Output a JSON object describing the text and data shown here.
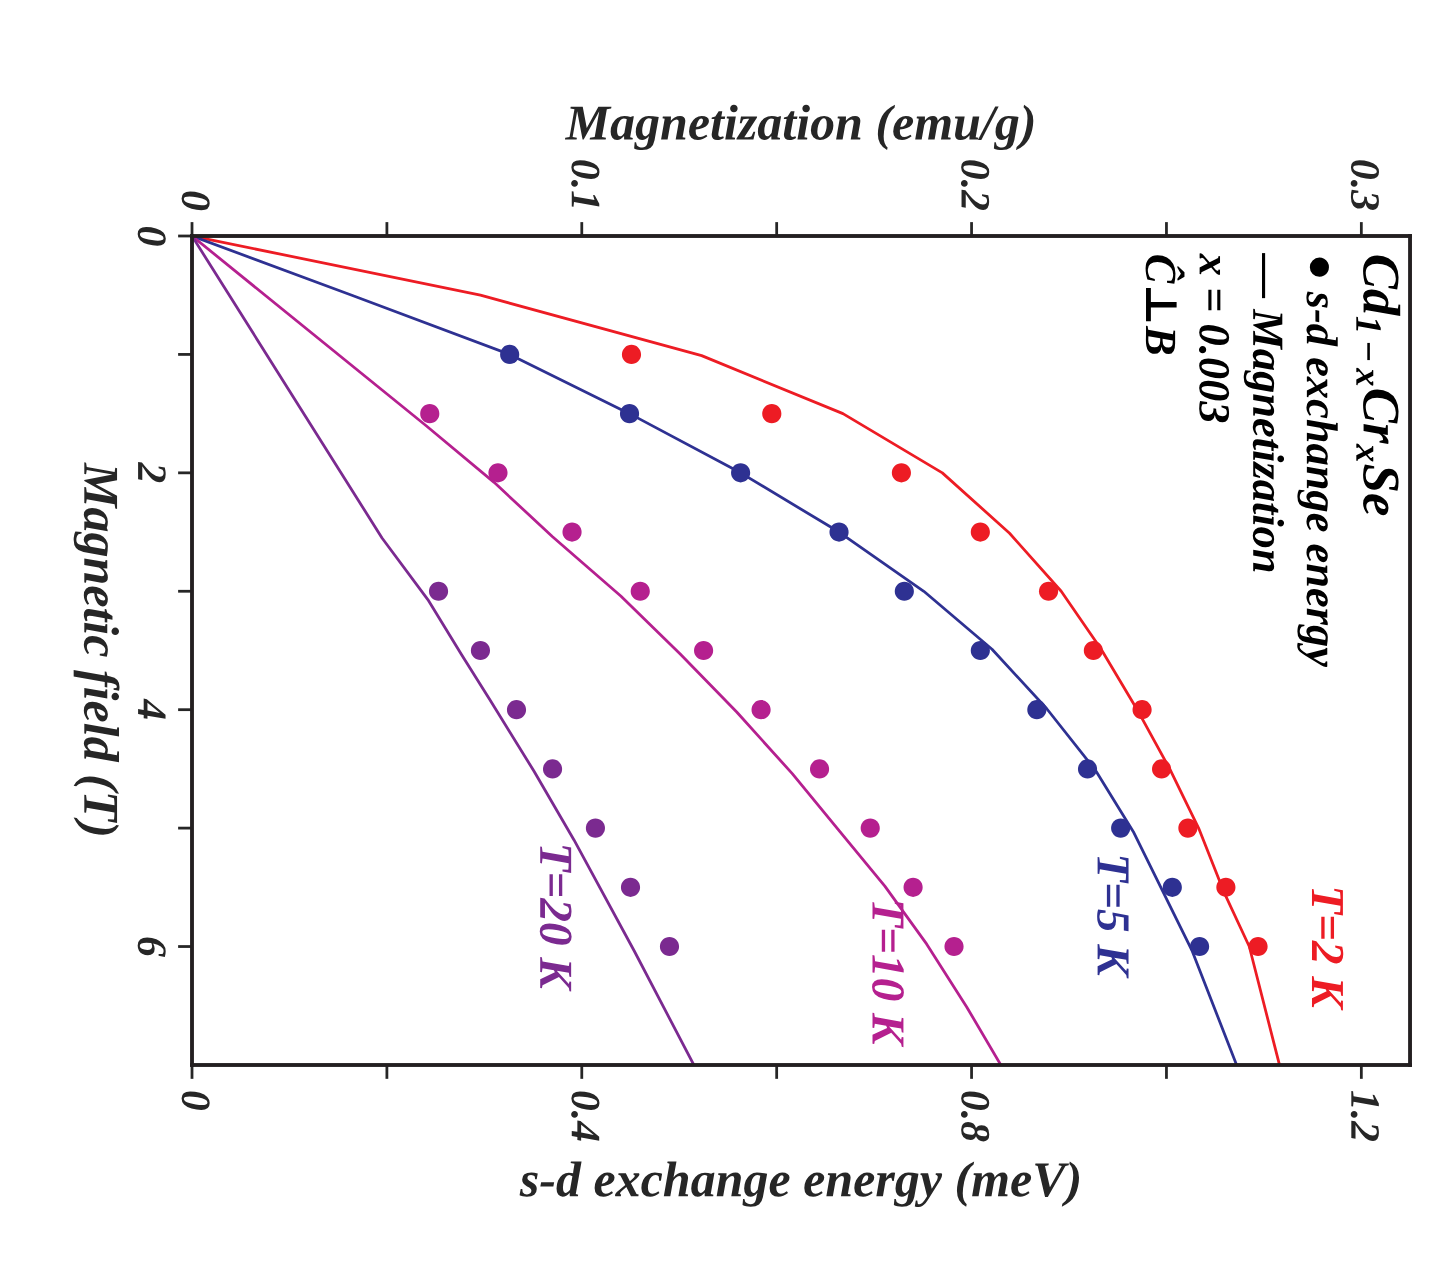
{
  "chart_data": {
    "type": "scatter",
    "xlabel": "s-d exchange energy (meV)",
    "ylabel": "Magnetic field (T)",
    "x2label": "Magnetization (emu/g)",
    "xlim": [
      0,
      1.25
    ],
    "xticks": [
      0,
      {
        "value": 0.2,
        "label": null
      },
      0.4,
      {
        "value": 0.6,
        "label": null
      },
      0.8,
      {
        "value": 1.0,
        "label": null
      },
      1.2
    ],
    "x2lim": [
      0,
      0.3125
    ],
    "x2ticks": [
      0,
      {
        "value": 0.05,
        "label": null
      },
      0.1,
      {
        "value": 0.15,
        "label": null
      },
      0.2,
      {
        "value": 0.25,
        "label": null
      },
      0.3
    ],
    "ylim": [
      7,
      0
    ],
    "yticks": [
      0,
      {
        "value": 1,
        "label": null
      },
      2,
      {
        "value": 3,
        "label": null
      },
      4,
      {
        "value": 5,
        "label": null
      },
      6
    ],
    "grid": false,
    "legend": false,
    "series": [
      {
        "marker": "circle",
        "color": "#ed1c24",
        "x": [
          0.451,
          0.595,
          0.728,
          0.809,
          0.879,
          0.925,
          0.975,
          0.995,
          1.022,
          1.061,
          1.094
        ],
        "values": [
          1,
          1.5,
          2,
          2.5,
          3,
          3.5,
          4,
          4.5,
          5,
          5.5,
          6
        ]
      },
      {
        "marker": "circle",
        "color": "#2e3192",
        "x": [
          0.326,
          0.449,
          0.563,
          0.664,
          0.731,
          0.809,
          0.867,
          0.919,
          0.953,
          1.006,
          1.034
        ],
        "values": [
          1,
          1.5,
          2,
          2.5,
          3,
          3.5,
          4,
          4.5,
          5,
          5.5,
          6
        ]
      },
      {
        "marker": "circle",
        "color": "#b5208f",
        "x": [
          0.244,
          0.314,
          0.39,
          0.46,
          0.525,
          0.584,
          0.644,
          0.696,
          0.74,
          0.782
        ],
        "values": [
          1.5,
          2,
          2.5,
          3,
          3.5,
          4,
          4.5,
          5,
          5.5,
          6
        ]
      },
      {
        "marker": "circle",
        "color": "#7b2a90",
        "x": [
          0.253,
          0.296,
          0.333,
          0.37,
          0.414,
          0.45,
          0.49
        ],
        "values": [
          3,
          3.5,
          4,
          4.5,
          5,
          5.5,
          6
        ]
      },
      {
        "type": "line",
        "name": "T=2 K",
        "line_style": "solid",
        "color": "#ed1c24",
        "x": [
          0,
          0.296,
          0.523,
          0.668,
          0.77,
          0.839,
          0.892,
          0.933,
          0.97,
          1.004,
          1.033,
          1.059,
          1.085,
          1.116
        ],
        "values": [
          0,
          0.5,
          1.01,
          1.5,
          2,
          2.51,
          3,
          3.49,
          4,
          4.51,
          5,
          5.54,
          6,
          7
        ]
      },
      {
        "type": "line",
        "name": "T=5 K",
        "line_style": "solid",
        "color": "#2e3192",
        "x": [
          0,
          0.164,
          0.326,
          0.449,
          0.563,
          0.664,
          0.751,
          0.821,
          0.877,
          0.927,
          0.966,
          1.026,
          1.072
        ],
        "values": [
          0,
          0.5,
          1,
          1.5,
          2,
          2.5,
          3,
          3.49,
          3.99,
          4.51,
          5.03,
          6.03,
          7
        ]
      },
      {
        "type": "line",
        "name": "T=10 K",
        "line_style": "solid",
        "color": "#b5208f",
        "x": [
          0,
          0.24,
          0.31,
          0.37,
          0.44,
          0.501,
          0.559,
          0.616,
          0.663,
          0.711,
          0.754,
          0.795,
          0.83
        ],
        "values": [
          0,
          1.6,
          2.08,
          2.54,
          3.04,
          3.53,
          4.02,
          4.54,
          5.01,
          5.49,
          5.98,
          6.51,
          7
        ]
      },
      {
        "type": "line",
        "name": "T=20 K",
        "line_style": "solid",
        "color": "#7b2a90",
        "x": [
          0,
          0.195,
          0.242,
          0.277,
          0.306,
          0.351,
          0.392,
          0.454,
          0.515
        ],
        "values": [
          0,
          2.55,
          3.07,
          3.54,
          3.92,
          4.52,
          5.1,
          6.04,
          7
        ]
      }
    ],
    "annotations": [
      "Cd$_{1−x}$Cr$_{x}$Se",
      "● s-d exchange energy",
      "— Magnetization",
      "x = 0.003",
      "Ĉ⊥B"
    ]
  }
}
